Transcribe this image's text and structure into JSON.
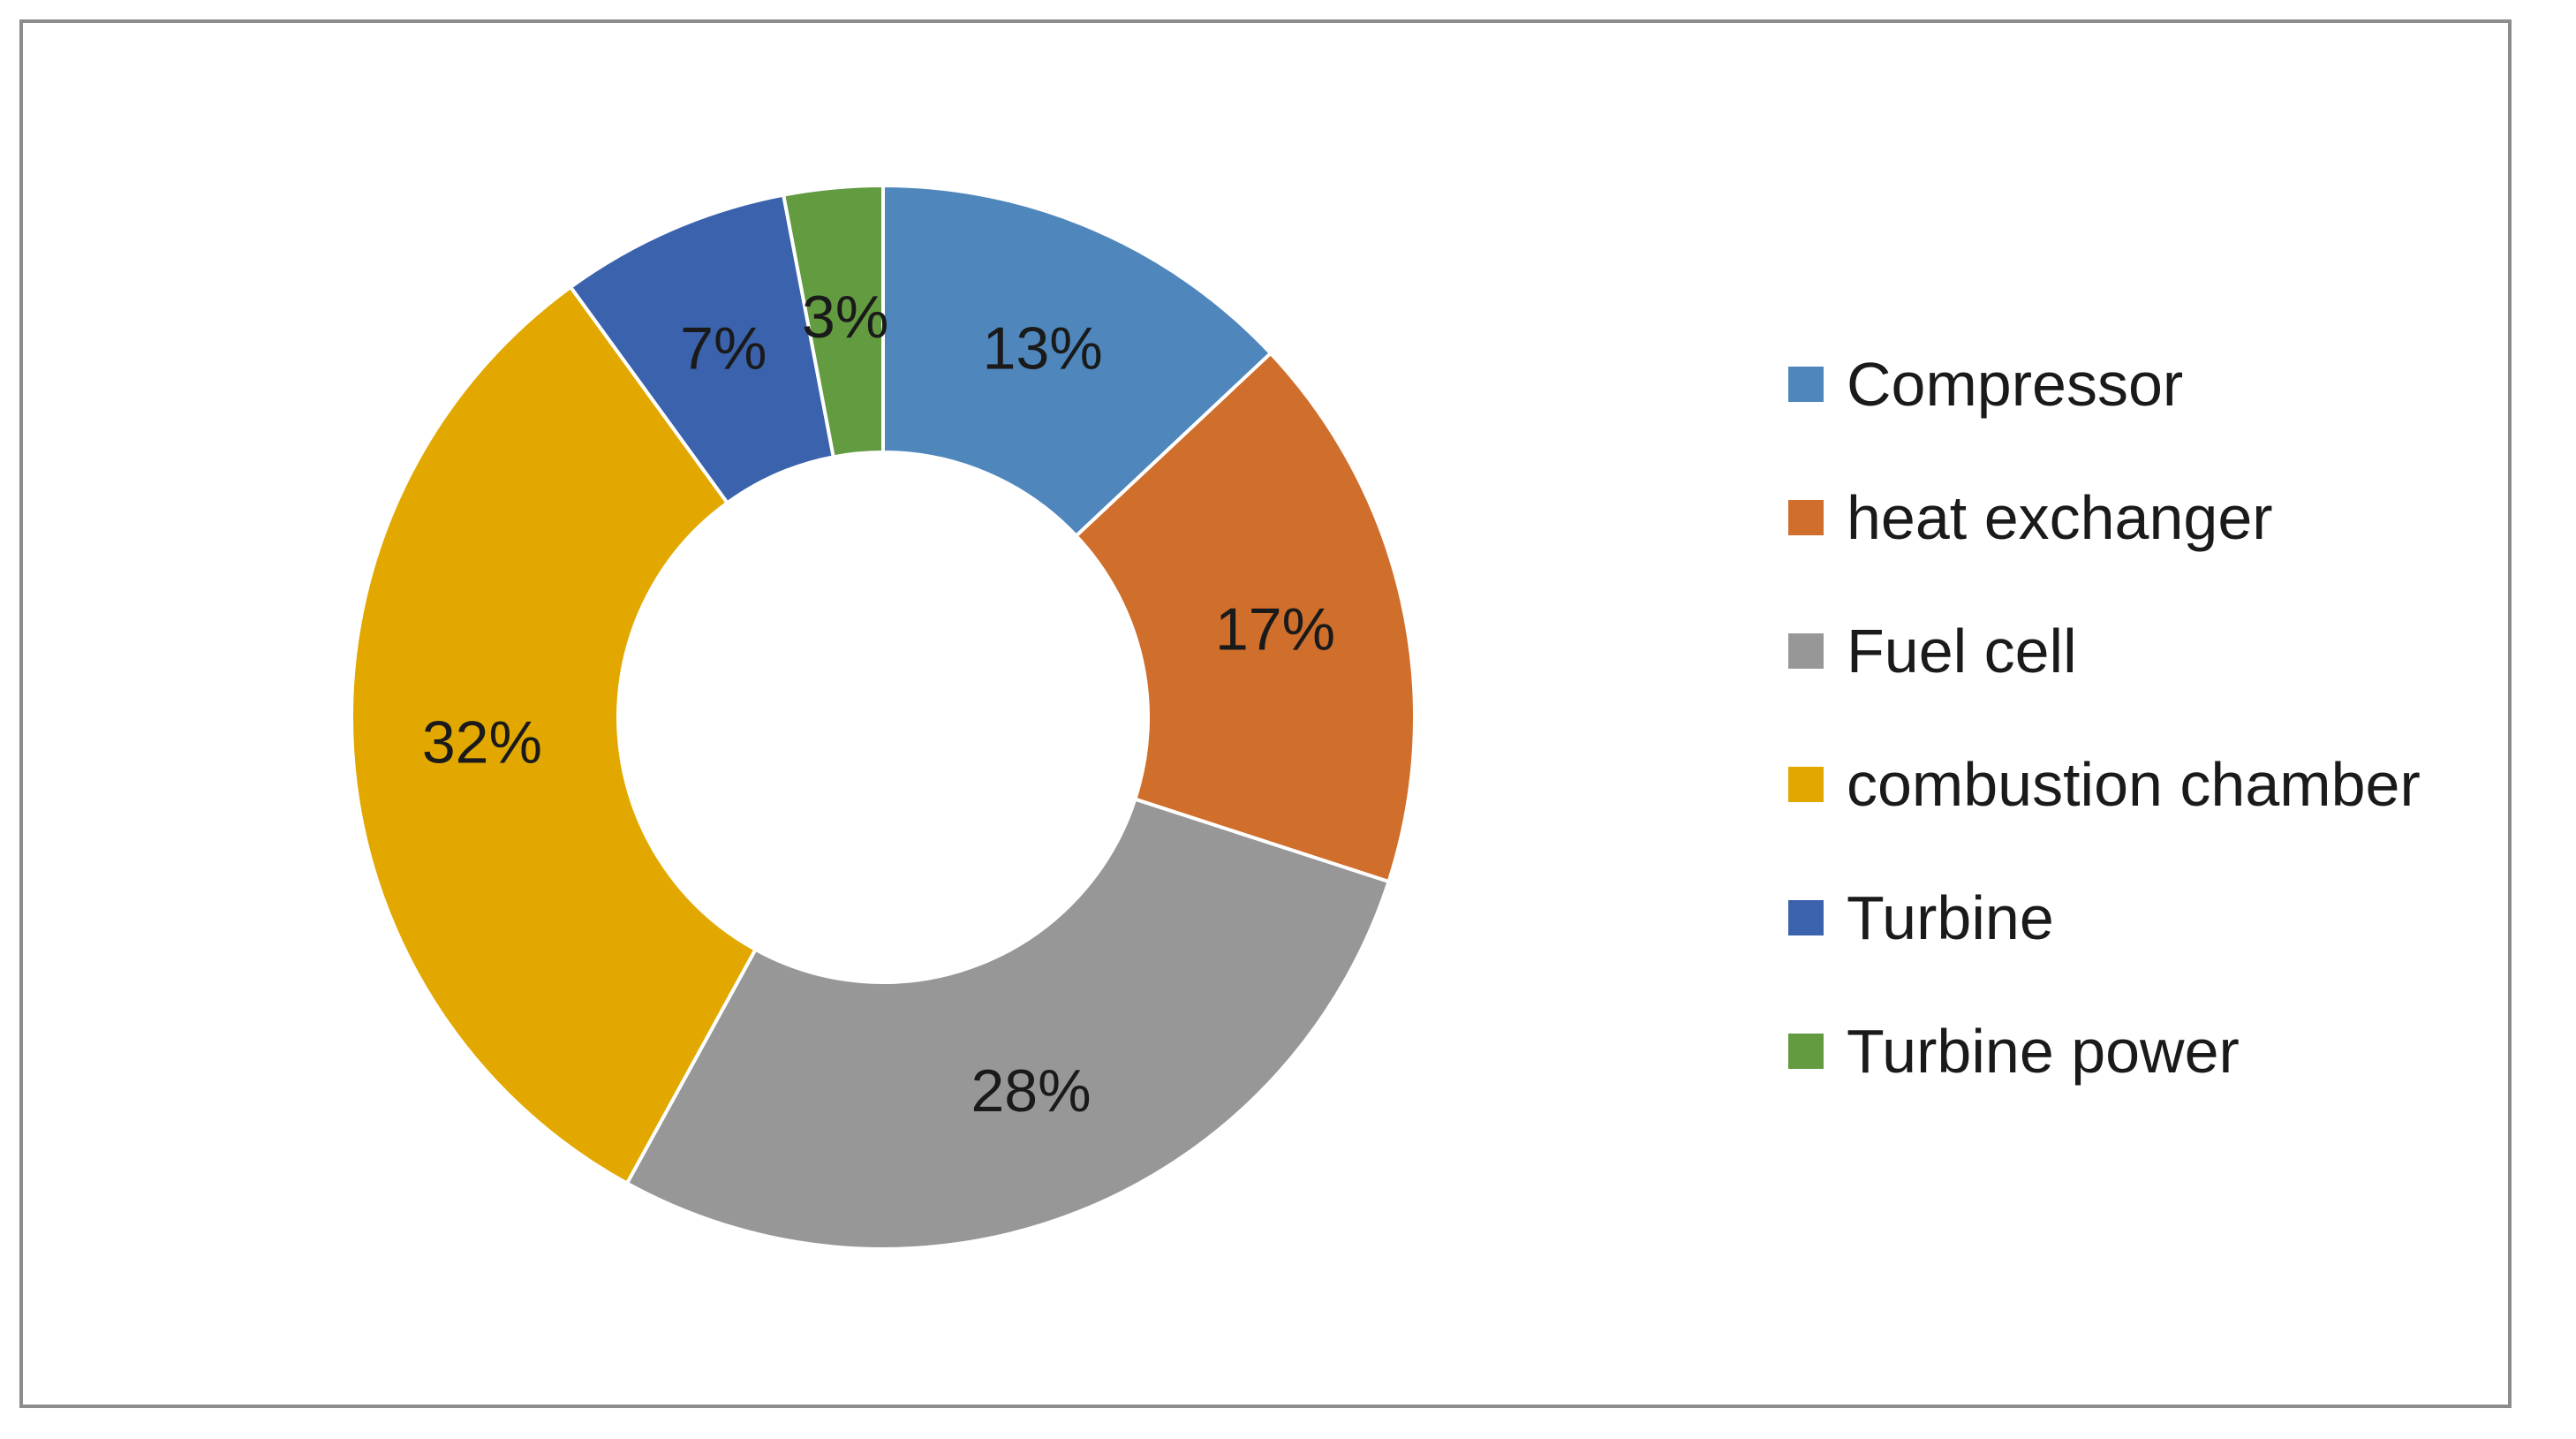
{
  "chart_data": {
    "type": "pie",
    "donut": true,
    "categories": [
      "Compressor",
      "heat exchanger",
      "Fuel cell",
      "combustion chamber",
      "Turbine",
      "Turbine power"
    ],
    "values": [
      13,
      17,
      28,
      32,
      7,
      3
    ],
    "value_labels": [
      "13%",
      "17%",
      "28%",
      "32%",
      "7%",
      "3%"
    ],
    "colors": [
      "#4f87bd",
      "#d06e2b",
      "#979797",
      "#e2a800",
      "#3b63ad",
      "#629b40"
    ],
    "legend_position": "right"
  }
}
